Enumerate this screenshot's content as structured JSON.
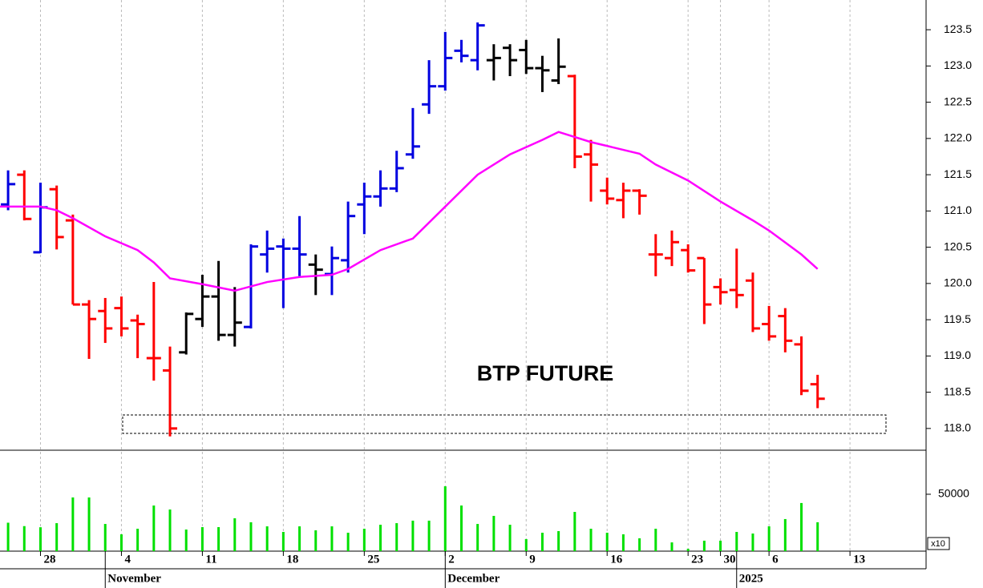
{
  "chart_data": [
    {
      "type": "ohlc",
      "title": "BTP FUTURE",
      "x": [
        0,
        1,
        2,
        3,
        4,
        5,
        6,
        7,
        8,
        9,
        10,
        11,
        12,
        13,
        14,
        15,
        16,
        17,
        18,
        19,
        20,
        21,
        22,
        23,
        24,
        25,
        26,
        27,
        28,
        29,
        30,
        31,
        32,
        33,
        34,
        35,
        36,
        37,
        38,
        39,
        40,
        41,
        42,
        43,
        44,
        45,
        46,
        47,
        48,
        49,
        50
      ],
      "open": [
        121.09,
        121.5,
        120.43,
        121.3,
        120.87,
        119.71,
        119.62,
        119.66,
        119.49,
        118.97,
        118.8,
        119.05,
        119.51,
        119.82,
        119.29,
        119.4,
        120.4,
        120.51,
        120.48,
        120.26,
        120.13,
        120.32,
        121.09,
        121.2,
        121.31,
        121.78,
        122.47,
        122.72,
        123.21,
        123.08,
        123.08,
        123.25,
        123.22,
        122.97,
        122.8,
        122.86,
        121.78,
        121.28,
        121.15,
        121.28,
        120.4,
        120.35,
        120.46,
        120.35,
        119.95,
        119.91,
        120.04,
        119.44,
        119.55,
        119.16,
        118.61
      ],
      "high": [
        121.56,
        121.56,
        121.39,
        121.35,
        120.95,
        119.77,
        119.8,
        119.82,
        119.57,
        120.02,
        119.13,
        119.6,
        120.12,
        120.31,
        119.95,
        120.54,
        120.73,
        120.62,
        120.93,
        120.4,
        120.51,
        121.13,
        121.39,
        121.56,
        121.83,
        122.42,
        123.08,
        123.47,
        123.36,
        123.6,
        123.3,
        123.3,
        123.36,
        123.14,
        123.38,
        122.88,
        121.98,
        121.46,
        121.39,
        121.3,
        120.68,
        120.73,
        120.54,
        120.35,
        120.07,
        120.48,
        120.15,
        119.69,
        119.66,
        119.27,
        118.74
      ],
      "low": [
        121.01,
        120.87,
        120.42,
        120.47,
        119.71,
        118.96,
        119.18,
        119.27,
        118.97,
        118.66,
        117.89,
        119.02,
        119.4,
        119.21,
        119.13,
        119.38,
        120.15,
        119.66,
        120.1,
        119.84,
        119.84,
        120.15,
        120.68,
        121.06,
        121.26,
        121.72,
        122.34,
        122.66,
        123.05,
        122.94,
        122.8,
        122.86,
        122.89,
        122.64,
        122.75,
        121.59,
        121.13,
        121.09,
        120.9,
        120.95,
        120.1,
        120.24,
        120.15,
        119.44,
        119.71,
        119.66,
        119.33,
        119.21,
        119.05,
        118.46,
        118.28
      ],
      "close": [
        121.37,
        120.89,
        121.05,
        120.64,
        119.71,
        119.51,
        119.38,
        119.38,
        119.44,
        118.97,
        118.0,
        119.58,
        119.82,
        119.29,
        119.46,
        120.51,
        120.48,
        120.48,
        120.4,
        120.19,
        120.35,
        120.93,
        121.2,
        121.31,
        121.59,
        121.89,
        122.72,
        123.11,
        123.14,
        123.56,
        123.11,
        123.08,
        122.97,
        122.94,
        122.99,
        121.75,
        121.64,
        121.17,
        121.28,
        121.21,
        120.4,
        120.57,
        120.18,
        119.71,
        119.88,
        119.84,
        119.38,
        119.27,
        119.21,
        118.52,
        118.41
      ],
      "colors": [
        "#0000e0",
        "#ff0000",
        "#0000e0",
        "#ff0000",
        "#ff0000",
        "#ff0000",
        "#ff0000",
        "#ff0000",
        "#ff0000",
        "#ff0000",
        "#ff0000",
        "#000000",
        "#000000",
        "#000000",
        "#000000",
        "#0000e0",
        "#0000e0",
        "#0000e0",
        "#0000e0",
        "#000000",
        "#0000e0",
        "#0000e0",
        "#0000e0",
        "#0000e0",
        "#0000e0",
        "#0000e0",
        "#0000e0",
        "#0000e0",
        "#0000e0",
        "#0000e0",
        "#000000",
        "#000000",
        "#000000",
        "#000000",
        "#000000",
        "#ff0000",
        "#ff0000",
        "#ff0000",
        "#ff0000",
        "#ff0000",
        "#ff0000",
        "#ff0000",
        "#ff0000",
        "#ff0000",
        "#ff0000",
        "#ff0000",
        "#ff0000",
        "#ff0000",
        "#ff0000",
        "#ff0000",
        "#ff0000"
      ],
      "ma": {
        "color": "#ff00ff",
        "x": [
          -0.5,
          2,
          3,
          4,
          6,
          8,
          9,
          10,
          12,
          14,
          16,
          18,
          20,
          21,
          23,
          25,
          27,
          29,
          31,
          33,
          34,
          36,
          39,
          40,
          42,
          44,
          46,
          47,
          49,
          50
        ],
        "values": [
          121.06,
          121.06,
          121.01,
          120.9,
          120.65,
          120.46,
          120.29,
          120.07,
          119.99,
          119.9,
          120.02,
          120.09,
          120.12,
          120.2,
          120.46,
          120.62,
          121.06,
          121.5,
          121.78,
          121.98,
          122.09,
          121.95,
          121.79,
          121.64,
          121.42,
          121.13,
          120.87,
          120.73,
          120.4,
          120.2
        ]
      },
      "xlim": [
        -0.5,
        56.7
      ],
      "ylim": [
        117.7,
        123.91
      ],
      "yticks": [
        {
          "value": 118,
          "label": "118.0"
        },
        {
          "value": 118.5,
          "label": "118.5"
        },
        {
          "value": 119,
          "label": "119.0"
        },
        {
          "value": 119.5,
          "label": "119.5"
        },
        {
          "value": 120,
          "label": "120.0"
        },
        {
          "value": 120.5,
          "label": "120.5"
        },
        {
          "value": 121,
          "label": "121.0"
        },
        {
          "value": 121.5,
          "label": "121.5"
        },
        {
          "value": 122,
          "label": "122.0"
        },
        {
          "value": 122.5,
          "label": "122.5"
        },
        {
          "value": 123,
          "label": "123.0"
        },
        {
          "value": 123.5,
          "label": "123.5"
        }
      ],
      "xticks": [
        {
          "value": 2,
          "label": "28"
        },
        {
          "value": 7,
          "label": "4"
        },
        {
          "value": 12,
          "label": "11"
        },
        {
          "value": 17,
          "label": "18"
        },
        {
          "value": 22,
          "label": "25"
        },
        {
          "value": 27,
          "label": "2"
        },
        {
          "value": 32,
          "label": "9"
        },
        {
          "value": 37,
          "label": "16"
        },
        {
          "value": 42,
          "label": "23"
        },
        {
          "value": 44,
          "label": "30"
        },
        {
          "value": 47,
          "label": "6"
        },
        {
          "value": 52,
          "label": "13"
        }
      ],
      "months": [
        {
          "value": 6,
          "label": "November"
        },
        {
          "value": 27,
          "label": "December"
        },
        {
          "value": 45,
          "label": "2025"
        }
      ],
      "grid": true
    },
    {
      "type": "bar",
      "x": [
        0,
        1,
        2,
        3,
        4,
        5,
        6,
        7,
        8,
        9,
        10,
        11,
        12,
        13,
        14,
        15,
        16,
        17,
        18,
        19,
        20,
        21,
        22,
        23,
        24,
        25,
        26,
        27,
        28,
        29,
        30,
        31,
        32,
        33,
        34,
        35,
        36,
        37,
        38,
        39,
        40,
        41,
        42,
        43,
        44,
        45,
        46,
        47,
        48,
        49,
        50
      ],
      "values": [
        25000,
        22000,
        21000,
        24600,
        47200,
        47200,
        23900,
        14800,
        19700,
        40100,
        36600,
        19000,
        21100,
        21100,
        28900,
        25400,
        21800,
        16900,
        21800,
        18300,
        21800,
        16200,
        19700,
        23200,
        24600,
        26800,
        26800,
        57000,
        40100,
        23900,
        31000,
        23200,
        10600,
        16200,
        17600,
        34500,
        19700,
        16200,
        14800,
        11300,
        19700,
        7700,
        2000,
        9200,
        9200,
        16900,
        15500,
        21800,
        28200,
        42300,
        25400
      ],
      "color": "#00e000",
      "xlim": [
        -0.5,
        56.7
      ],
      "ylim": [
        0,
        88700
      ],
      "yticks": [
        50000
      ],
      "multiplier": "x10"
    }
  ]
}
